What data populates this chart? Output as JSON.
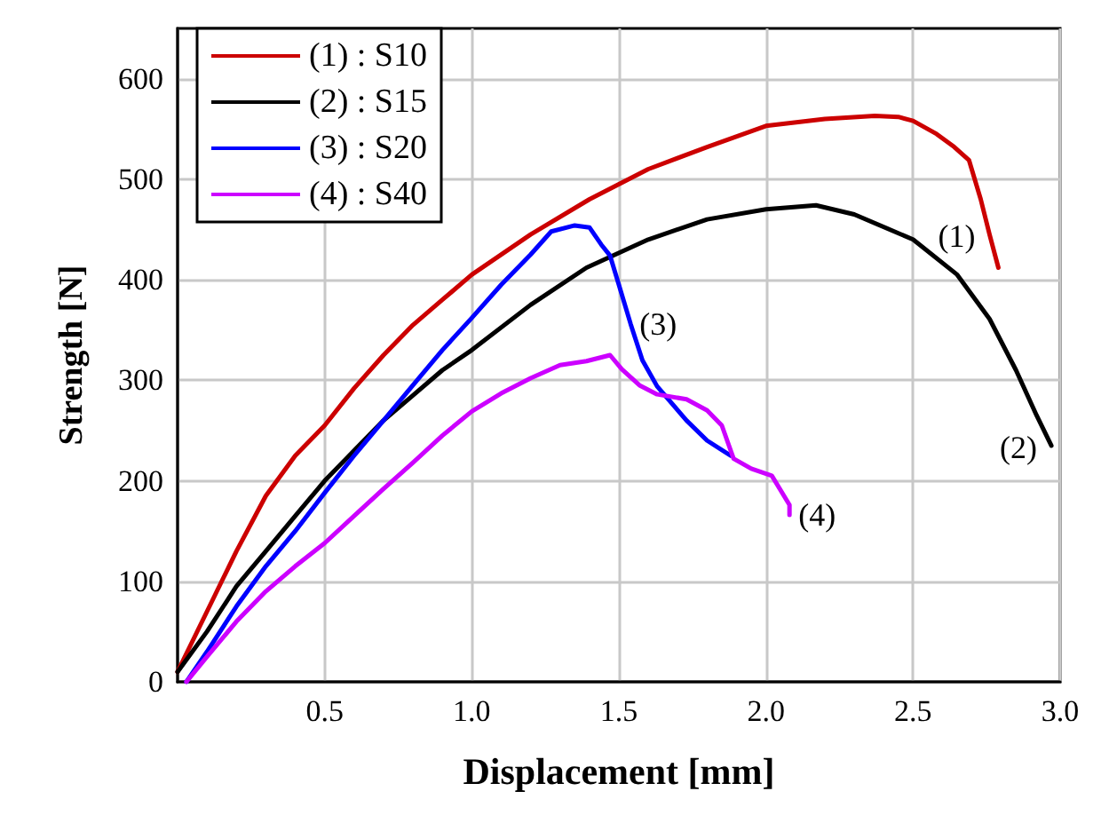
{
  "chart_data": {
    "type": "line",
    "xlabel": "Displacement [mm]",
    "ylabel": "Strength [N]",
    "xlim": [
      0,
      3
    ],
    "ylim": [
      0,
      650
    ],
    "xticks": [
      {
        "value": 0,
        "label": null
      },
      {
        "value": 0.5,
        "label": "0.5"
      },
      {
        "value": 1,
        "label": "1.0"
      },
      {
        "value": 1.5,
        "label": "1.5"
      },
      {
        "value": 2,
        "label": "2.0"
      },
      {
        "value": 2.5,
        "label": "2.5"
      },
      {
        "value": 3,
        "label": "3.0"
      }
    ],
    "yticks": [
      0,
      100,
      200,
      300,
      400,
      500,
      600
    ],
    "grid": true,
    "legend": "top left",
    "marker": "none",
    "line_style": "solid",
    "series": [
      {
        "name": "(1) : S10",
        "color": "#cc0000",
        "x": [
          0,
          0.1,
          0.2,
          0.3,
          0.4,
          0.5,
          0.6,
          0.7,
          0.8,
          0.9,
          1.0,
          1.2,
          1.4,
          1.6,
          1.8,
          2.0,
          2.2,
          2.37,
          2.45,
          2.5,
          2.58,
          2.64,
          2.69,
          2.73,
          2.76,
          2.79
        ],
        "values": [
          10,
          70,
          130,
          185,
          225,
          255,
          292,
          325,
          355,
          380,
          405,
          445,
          480,
          510,
          532,
          553,
          560,
          563,
          562,
          558,
          545,
          532,
          519,
          480,
          445,
          412
        ]
      },
      {
        "name": "(2) : S15",
        "color": "#000000",
        "x": [
          0,
          0.1,
          0.2,
          0.3,
          0.4,
          0.5,
          0.6,
          0.7,
          0.8,
          0.9,
          1.0,
          1.2,
          1.39,
          1.6,
          1.8,
          2.0,
          2.17,
          2.3,
          2.5,
          2.65,
          2.76,
          2.85,
          2.92,
          2.97
        ],
        "values": [
          10,
          50,
          95,
          130,
          165,
          200,
          230,
          260,
          285,
          310,
          330,
          375,
          412,
          440,
          460,
          470,
          474,
          465,
          440,
          405,
          361,
          310,
          265,
          235
        ]
      },
      {
        "name": "(3) : S20",
        "color": "#0000ff",
        "x": [
          0.03,
          0.1,
          0.2,
          0.3,
          0.4,
          0.5,
          0.6,
          0.7,
          0.8,
          0.9,
          1.0,
          1.1,
          1.2,
          1.27,
          1.35,
          1.4,
          1.44,
          1.47,
          1.5,
          1.54,
          1.58,
          1.63,
          1.73,
          1.8,
          1.88
        ],
        "values": [
          0,
          30,
          75,
          115,
          150,
          188,
          225,
          260,
          295,
          330,
          362,
          395,
          425,
          448,
          454,
          452,
          435,
          424,
          395,
          356,
          320,
          294,
          260,
          240,
          225
        ]
      },
      {
        "name": "(4) : S40",
        "color": "#cc00ff",
        "x": [
          0.03,
          0.1,
          0.2,
          0.3,
          0.4,
          0.5,
          0.6,
          0.7,
          0.8,
          0.9,
          1.0,
          1.1,
          1.2,
          1.3,
          1.39,
          1.47,
          1.51,
          1.57,
          1.63,
          1.73,
          1.8,
          1.85,
          1.89,
          1.95,
          2.02,
          2.08,
          2.08
        ],
        "values": [
          0,
          25,
          60,
          90,
          115,
          138,
          165,
          192,
          218,
          245,
          269,
          287,
          302,
          315,
          319,
          325,
          311,
          295,
          286,
          281,
          270,
          255,
          222,
          212,
          205,
          176,
          166
        ]
      }
    ],
    "annotations": [
      {
        "text": "(1)",
        "x": 2.76,
        "y": 445
      },
      {
        "text": "(2)",
        "x": 2.97,
        "y": 235
      },
      {
        "text": "(3)",
        "x": 1.54,
        "y": 356
      },
      {
        "text": "(4)",
        "x": 2.08,
        "y": 166
      }
    ]
  }
}
